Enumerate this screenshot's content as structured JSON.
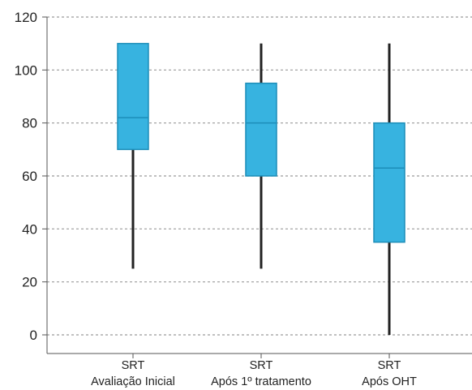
{
  "chart_data": {
    "type": "box",
    "title": "",
    "xlabel": "",
    "ylabel": "",
    "ylim": [
      -5,
      120
    ],
    "yticks": [
      0,
      20,
      40,
      60,
      80,
      100,
      120
    ],
    "grid": true,
    "grid_style": "dotted",
    "legend": "none",
    "box_color": "#37B3E0",
    "box_edge_color": "#1C8DB8",
    "whisker_color": "#222222",
    "grid_color": "#9a9a9a",
    "axis_color": "#555555",
    "categories": [
      {
        "line1": "SRT",
        "line2": "Avaliação Inicial"
      },
      {
        "line1": "SRT",
        "line2": "Após 1º tratamento"
      },
      {
        "line1": "SRT",
        "line2": "Após OHT"
      }
    ],
    "boxes": [
      {
        "min": 25,
        "q1": 70,
        "median": 82,
        "q3": 110,
        "max": 110
      },
      {
        "min": 25,
        "q1": 60,
        "median": 80,
        "q3": 95,
        "max": 110
      },
      {
        "min": 0,
        "q1": 35,
        "median": 63,
        "q3": 80,
        "max": 110
      }
    ]
  }
}
